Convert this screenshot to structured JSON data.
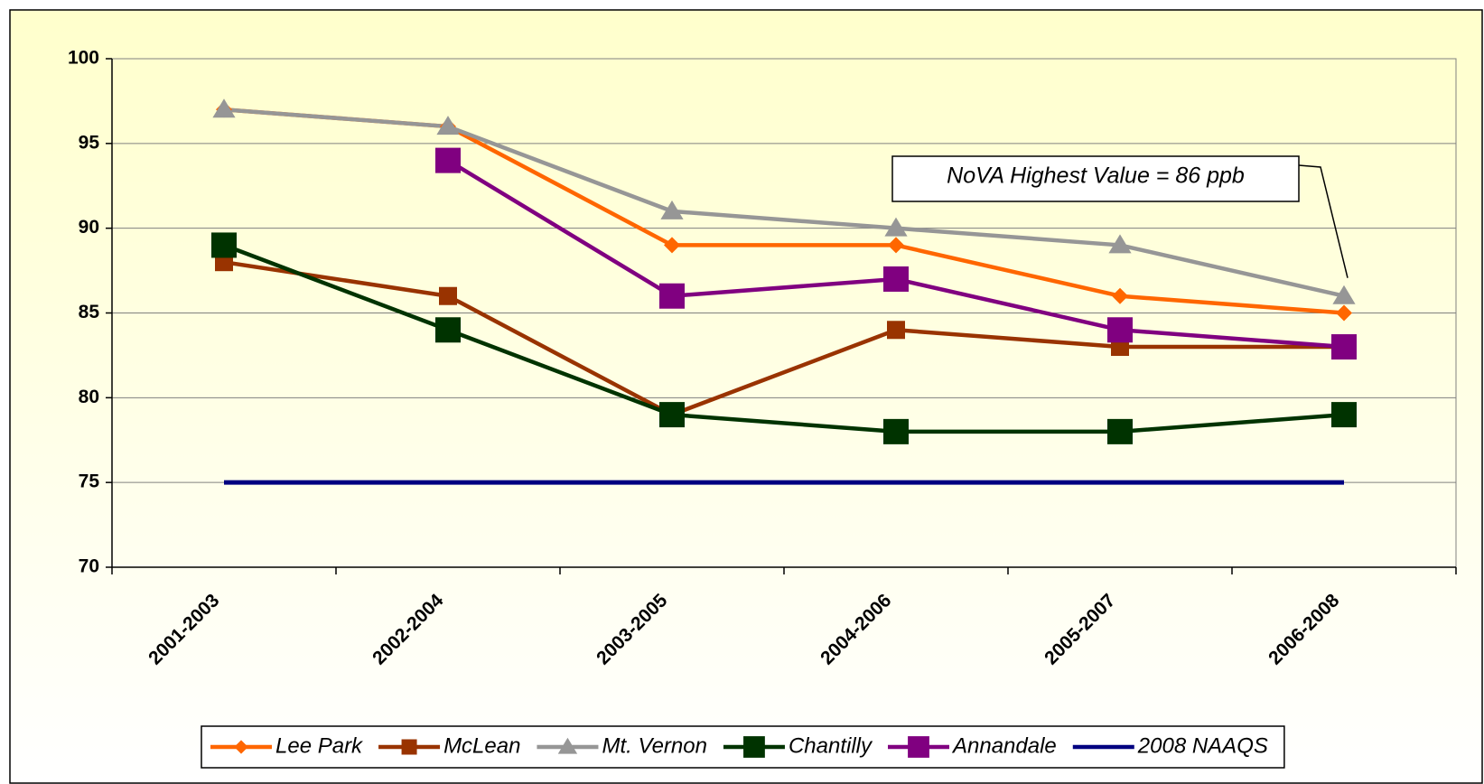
{
  "chart_data": {
    "type": "line",
    "categories": [
      "2001-2003",
      "2002-2004",
      "2003-2005",
      "2004-2006",
      "2005-2007",
      "2006-2008"
    ],
    "series": [
      {
        "name": "Lee Park",
        "color": "#ff6600",
        "marker": "diamond",
        "values": [
          97,
          96,
          89,
          89,
          86,
          85
        ]
      },
      {
        "name": "McLean",
        "color": "#993300",
        "marker": "square",
        "values": [
          88,
          86,
          79,
          84,
          83,
          83
        ]
      },
      {
        "name": "Mt. Vernon",
        "color": "#969696",
        "marker": "triangle",
        "values": [
          97,
          96,
          91,
          90,
          89,
          86
        ]
      },
      {
        "name": "Chantilly",
        "color": "#003300",
        "marker": "big-square",
        "values": [
          89,
          84,
          79,
          78,
          78,
          79
        ]
      },
      {
        "name": "Annandale",
        "color": "#800080",
        "marker": "big-square",
        "values": [
          null,
          94,
          86,
          87,
          84,
          83
        ]
      },
      {
        "name": "2008 NAAQS",
        "color": "#000080",
        "marker": "none",
        "values": [
          75,
          75,
          75,
          75,
          75,
          75
        ]
      }
    ],
    "ylim": [
      70,
      100
    ],
    "yticks": [
      70,
      75,
      80,
      85,
      90,
      95,
      100
    ],
    "grid": true,
    "legend": "bottom",
    "annotation": "NoVA Highest Value = 86 ppb"
  }
}
